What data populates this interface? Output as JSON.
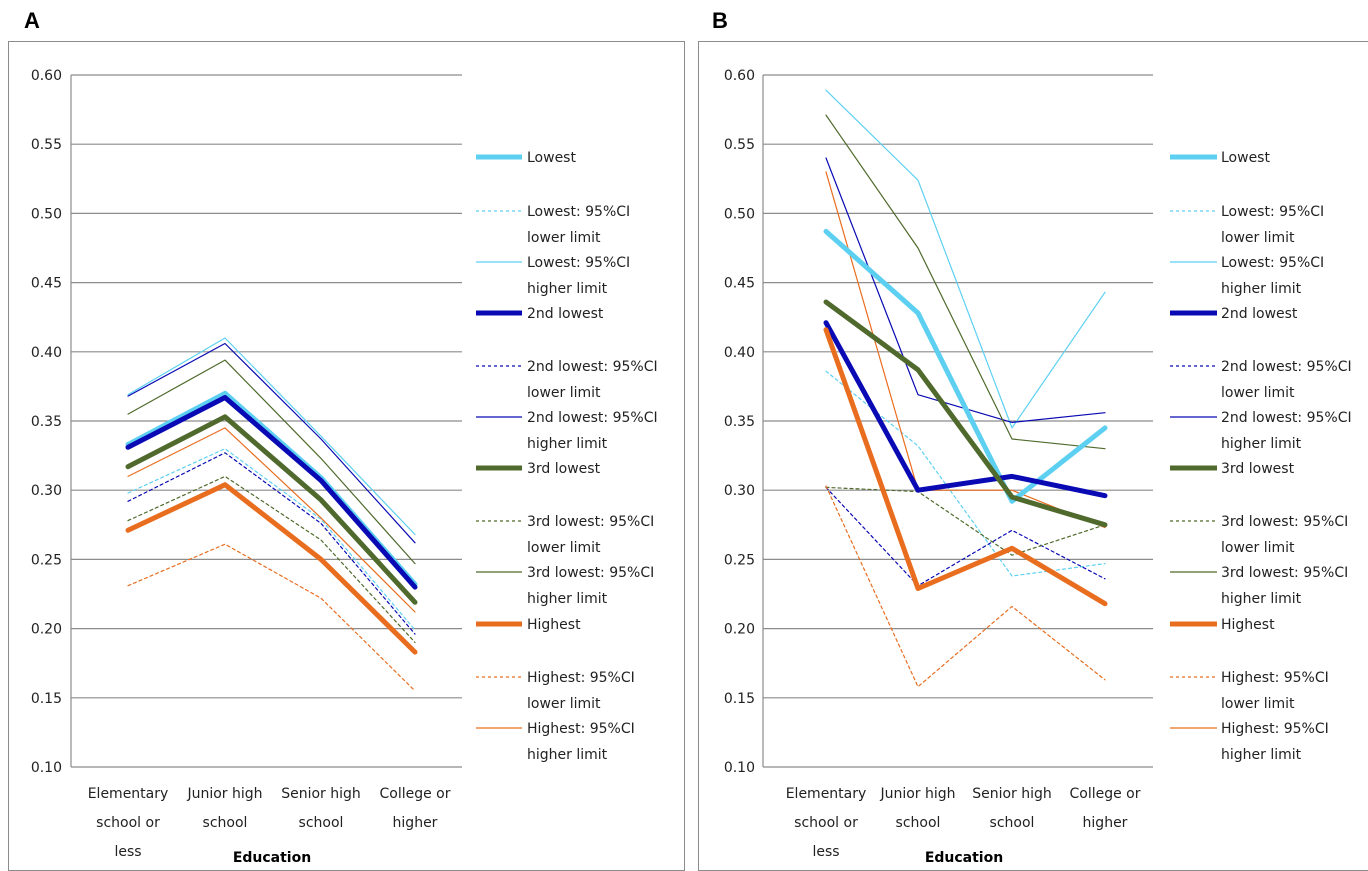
{
  "panels": [
    {
      "label": "A"
    },
    {
      "label": "B"
    }
  ],
  "chart_data": [
    {
      "type": "line",
      "panel": "A",
      "xlabel": "Education",
      "ylabel": "",
      "ylim": [
        0.1,
        0.6
      ],
      "yticks": [
        "0.60",
        "0.55",
        "0.50",
        "0.45",
        "0.40",
        "0.35",
        "0.30",
        "0.25",
        "0.20",
        "0.15",
        "0.10"
      ],
      "categories": [
        [
          "Elementary",
          "school or",
          "less"
        ],
        [
          "Junior high",
          "school"
        ],
        [
          "Senior high",
          "school"
        ],
        [
          "College or",
          "higher"
        ]
      ],
      "grid": true,
      "legend_position": "right",
      "series": [
        {
          "name": "Lowest",
          "legend": [
            "Lowest"
          ],
          "color": "#5dd0f2",
          "style": "thick",
          "values": [
            0.333,
            0.37,
            0.309,
            0.232
          ]
        },
        {
          "name": "Lowest: 95%CI lower limit",
          "legend": [
            "Lowest: 95%CI",
            "lower limit"
          ],
          "color": "#5dd0f2",
          "style": "dashed",
          "values": [
            0.298,
            0.33,
            0.279,
            0.199
          ]
        },
        {
          "name": "Lowest: 95%CI higher limit",
          "legend": [
            "Lowest: 95%CI",
            "higher limit"
          ],
          "color": "#5dd0f2",
          "style": "thin",
          "values": [
            0.369,
            0.41,
            0.339,
            0.268
          ]
        },
        {
          "name": "2nd lowest",
          "legend": [
            "2nd lowest"
          ],
          "color": "#0a0ab4",
          "style": "thick",
          "values": [
            0.331,
            0.367,
            0.307,
            0.23
          ]
        },
        {
          "name": "2nd lowest: 95%CI lower limit",
          "legend": [
            "2nd lowest: 95%CI",
            "lower limit"
          ],
          "color": "#0a0ab4",
          "style": "dashed",
          "values": [
            0.292,
            0.327,
            0.276,
            0.196
          ]
        },
        {
          "name": "2nd lowest: 95%CI higher limit",
          "legend": [
            "2nd lowest: 95%CI",
            "higher limit"
          ],
          "color": "#0a0ab4",
          "style": "thin",
          "values": [
            0.368,
            0.406,
            0.337,
            0.262
          ]
        },
        {
          "name": "3rd lowest",
          "legend": [
            "3rd lowest"
          ],
          "color": "#4f6a2c",
          "style": "thick",
          "values": [
            0.317,
            0.353,
            0.293,
            0.219
          ]
        },
        {
          "name": "3rd lowest: 95%CI lower limit",
          "legend": [
            "3rd lowest: 95%CI",
            "lower limit"
          ],
          "color": "#4f6a2c",
          "style": "dashed",
          "values": [
            0.278,
            0.31,
            0.264,
            0.19
          ]
        },
        {
          "name": "3rd lowest: 95%CI higher limit",
          "legend": [
            "3rd lowest: 95%CI",
            "higher limit"
          ],
          "color": "#4f6a2c",
          "style": "thin",
          "values": [
            0.355,
            0.394,
            0.323,
            0.247
          ]
        },
        {
          "name": "Highest",
          "legend": [
            "Highest"
          ],
          "color": "#e96d1f",
          "style": "thick",
          "values": [
            0.271,
            0.304,
            0.25,
            0.183
          ]
        },
        {
          "name": "Highest: 95%CI lower limit",
          "legend": [
            "Highest: 95%CI",
            "lower limit"
          ],
          "color": "#e96d1f",
          "style": "dashed",
          "values": [
            0.231,
            0.261,
            0.222,
            0.155
          ]
        },
        {
          "name": "Highest: 95%CI higher limit",
          "legend": [
            "Highest: 95%CI",
            "higher limit"
          ],
          "color": "#e96d1f",
          "style": "thin",
          "values": [
            0.31,
            0.345,
            0.28,
            0.212
          ]
        }
      ]
    },
    {
      "type": "line",
      "panel": "B",
      "xlabel": "Education",
      "ylabel": "",
      "ylim": [
        0.1,
        0.6
      ],
      "yticks": [
        "0.60",
        "0.55",
        "0.50",
        "0.45",
        "0.40",
        "0.35",
        "0.30",
        "0.25",
        "0.20",
        "0.15",
        "0.10"
      ],
      "categories": [
        [
          "Elementary",
          "school or",
          "less"
        ],
        [
          "Junior high",
          "school"
        ],
        [
          "Senior high",
          "school"
        ],
        [
          "College or",
          "higher"
        ]
      ],
      "grid": true,
      "legend_position": "right",
      "series": [
        {
          "name": "Lowest",
          "legend": [
            "Lowest"
          ],
          "color": "#5dd0f2",
          "style": "thick",
          "values": [
            0.487,
            0.428,
            0.292,
            0.345
          ]
        },
        {
          "name": "Lowest: 95%CI lower limit",
          "legend": [
            "Lowest: 95%CI",
            "lower limit"
          ],
          "color": "#5dd0f2",
          "style": "dashed",
          "values": [
            0.386,
            0.332,
            0.238,
            0.247
          ]
        },
        {
          "name": "Lowest: 95%CI higher limit",
          "legend": [
            "Lowest: 95%CI",
            "higher limit"
          ],
          "color": "#5dd0f2",
          "style": "thin",
          "values": [
            0.589,
            0.524,
            0.345,
            0.443
          ]
        },
        {
          "name": "2nd lowest",
          "legend": [
            "2nd lowest"
          ],
          "color": "#0a0ab4",
          "style": "thick",
          "values": [
            0.421,
            0.3,
            0.31,
            0.296
          ]
        },
        {
          "name": "2nd lowest: 95%CI lower limit",
          "legend": [
            "2nd lowest: 95%CI",
            "lower limit"
          ],
          "color": "#0a0ab4",
          "style": "dashed",
          "values": [
            0.302,
            0.231,
            0.271,
            0.236
          ]
        },
        {
          "name": "2nd lowest: 95%CI higher limit",
          "legend": [
            "2nd lowest: 95%CI",
            "higher limit"
          ],
          "color": "#0a0ab4",
          "style": "thin",
          "values": [
            0.54,
            0.369,
            0.349,
            0.356
          ]
        },
        {
          "name": "3rd lowest",
          "legend": [
            "3rd lowest"
          ],
          "color": "#4f6a2c",
          "style": "thick",
          "values": [
            0.436,
            0.387,
            0.295,
            0.275
          ]
        },
        {
          "name": "3rd lowest: 95%CI lower limit",
          "legend": [
            "3rd lowest: 95%CI",
            "lower limit"
          ],
          "color": "#4f6a2c",
          "style": "dashed",
          "values": [
            0.302,
            0.299,
            0.253,
            0.275
          ]
        },
        {
          "name": "3rd lowest: 95%CI higher limit",
          "legend": [
            "3rd lowest: 95%CI",
            "higher limit"
          ],
          "color": "#4f6a2c",
          "style": "thin",
          "values": [
            0.571,
            0.475,
            0.337,
            0.33
          ]
        },
        {
          "name": "Highest",
          "legend": [
            "Highest"
          ],
          "color": "#e96d1f",
          "style": "thick",
          "values": [
            0.416,
            0.229,
            0.258,
            0.218
          ]
        },
        {
          "name": "Highest: 95%CI lower limit",
          "legend": [
            "Highest: 95%CI",
            "lower limit"
          ],
          "color": "#e96d1f",
          "style": "dashed",
          "values": [
            0.303,
            0.158,
            0.216,
            0.163
          ]
        },
        {
          "name": "Highest: 95%CI higher limit",
          "legend": [
            "Highest: 95%CI",
            "higher limit"
          ],
          "color": "#e96d1f",
          "style": "thin",
          "values": [
            0.53,
            0.3,
            0.3,
            0.273
          ]
        }
      ]
    }
  ]
}
